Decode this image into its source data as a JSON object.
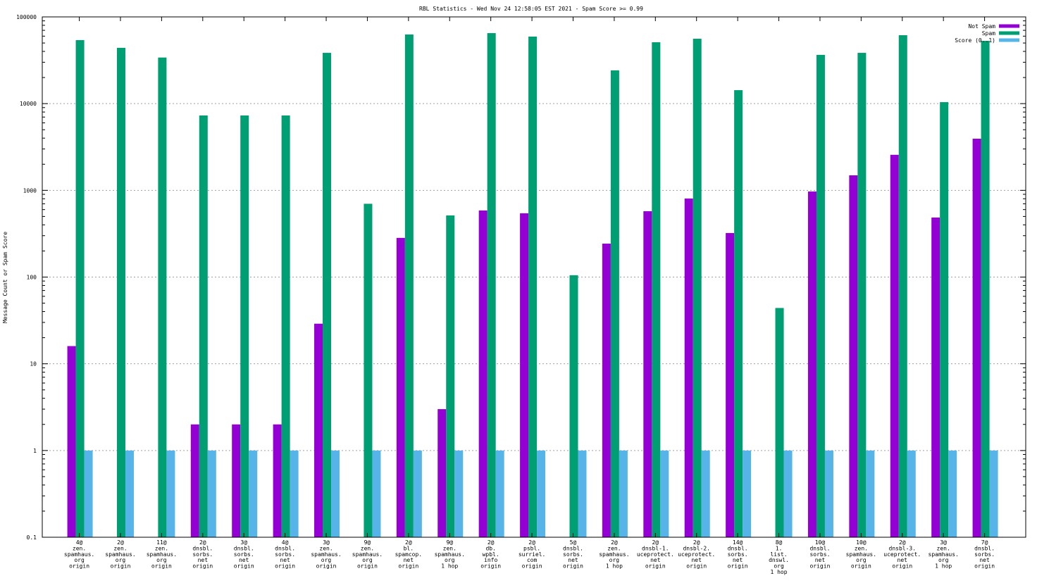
{
  "chart_data": {
    "type": "bar",
    "title": "RBL Statistics - Wed Nov 24 12:58:05 EST 2021 - Spam Score >= 0.99",
    "xlabel": "",
    "ylabel": "Message Count or Spam Score",
    "yscale": "log",
    "ylim": [
      0.1,
      100000
    ],
    "yticks": [
      "0.1",
      "1",
      "10",
      "100",
      "1000",
      "10000",
      "100000"
    ],
    "grid": true,
    "legend_position": "top-right",
    "categories": [
      [
        "4@",
        "zen.",
        "spamhaus.",
        "org",
        "origin"
      ],
      [
        "2@",
        "zen.",
        "spamhaus.",
        "org",
        "origin"
      ],
      [
        "11@",
        "zen.",
        "spamhaus.",
        "org",
        "origin"
      ],
      [
        "2@",
        "dnsbl.",
        "sorbs.",
        "net",
        "origin"
      ],
      [
        "3@",
        "dnsbl.",
        "sorbs.",
        "net",
        "origin"
      ],
      [
        "4@",
        "dnsbl.",
        "sorbs.",
        "net",
        "origin"
      ],
      [
        "3@",
        "zen.",
        "spamhaus.",
        "org",
        "origin"
      ],
      [
        "9@",
        "zen.",
        "spamhaus.",
        "org",
        "origin"
      ],
      [
        "2@",
        "bl.",
        "spamcop.",
        "net",
        "origin"
      ],
      [
        "9@",
        "zen.",
        "spamhaus.",
        "org",
        "1 hop"
      ],
      [
        "2@",
        "db.",
        "wpbl.",
        "info",
        "origin"
      ],
      [
        "2@",
        "psbl.",
        "surriel.",
        "com",
        "origin"
      ],
      [
        "5@",
        "dnsbl.",
        "sorbs.",
        "net",
        "origin"
      ],
      [
        "2@",
        "zen.",
        "spamhaus.",
        "org",
        "1 hop"
      ],
      [
        "2@",
        "dnsbl-1.",
        "uceprotect.",
        "net",
        "origin"
      ],
      [
        "2@",
        "dnsbl-2.",
        "uceprotect.",
        "net",
        "origin"
      ],
      [
        "14@",
        "dnsbl.",
        "sorbs.",
        "net",
        "origin"
      ],
      [
        "8@",
        "1.",
        "list.",
        "dnswl.",
        "org",
        "1 hop"
      ],
      [
        "10@",
        "dnsbl.",
        "sorbs.",
        "net",
        "origin"
      ],
      [
        "10@",
        "zen.",
        "spamhaus.",
        "org",
        "origin"
      ],
      [
        "2@",
        "dnsbl-3.",
        "uceprotect.",
        "net",
        "origin"
      ],
      [
        "3@",
        "zen.",
        "spamhaus.",
        "org",
        "1 hop"
      ],
      [
        "7@",
        "dnsbl.",
        "sorbs.",
        "net",
        "origin"
      ]
    ],
    "series": [
      {
        "name": "Not Spam",
        "color": "#9400d3",
        "values": [
          16,
          null,
          null,
          2,
          2,
          2,
          29,
          null,
          283,
          3,
          586,
          544,
          null,
          243,
          575,
          805,
          322,
          null,
          971,
          1490,
          2570,
          486,
          3940
        ]
      },
      {
        "name": "Spam",
        "color": "#009e73",
        "values": [
          54000,
          44000,
          34000,
          7300,
          7300,
          7300,
          38500,
          700,
          62700,
          514,
          65000,
          59300,
          105,
          24200,
          51000,
          56000,
          14300,
          44,
          36500,
          38500,
          61500,
          10400,
          53000
        ]
      },
      {
        "name": "Score (0..1)",
        "color": "#56b4e9",
        "values": [
          1,
          1,
          1,
          1,
          1,
          1,
          1,
          1,
          1,
          1,
          1,
          1,
          1,
          1,
          1,
          1,
          1,
          1,
          1,
          1,
          1,
          1,
          1
        ]
      }
    ]
  }
}
